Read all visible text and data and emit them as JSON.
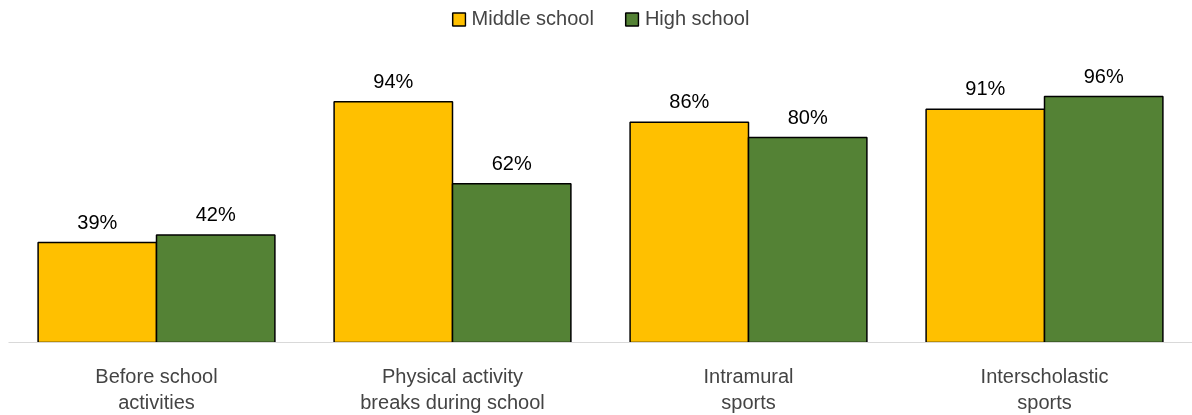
{
  "chart_data": {
    "type": "bar",
    "categories": [
      "Before school\nactivities",
      "Physical activity\nbreaks during school",
      "Intramural\nsports",
      "Interscholastic\nsports"
    ],
    "series": [
      {
        "name": "Middle school",
        "color": "#ffc000",
        "values": [
          39,
          94,
          86,
          91
        ],
        "value_labels": [
          "39%",
          "94%",
          "86%",
          "91%"
        ]
      },
      {
        "name": "High school",
        "color": "#548235",
        "values": [
          42,
          62,
          80,
          96
        ],
        "value_labels": [
          "42%",
          "62%",
          "80%",
          "96%"
        ]
      }
    ],
    "legend": "top"
  }
}
